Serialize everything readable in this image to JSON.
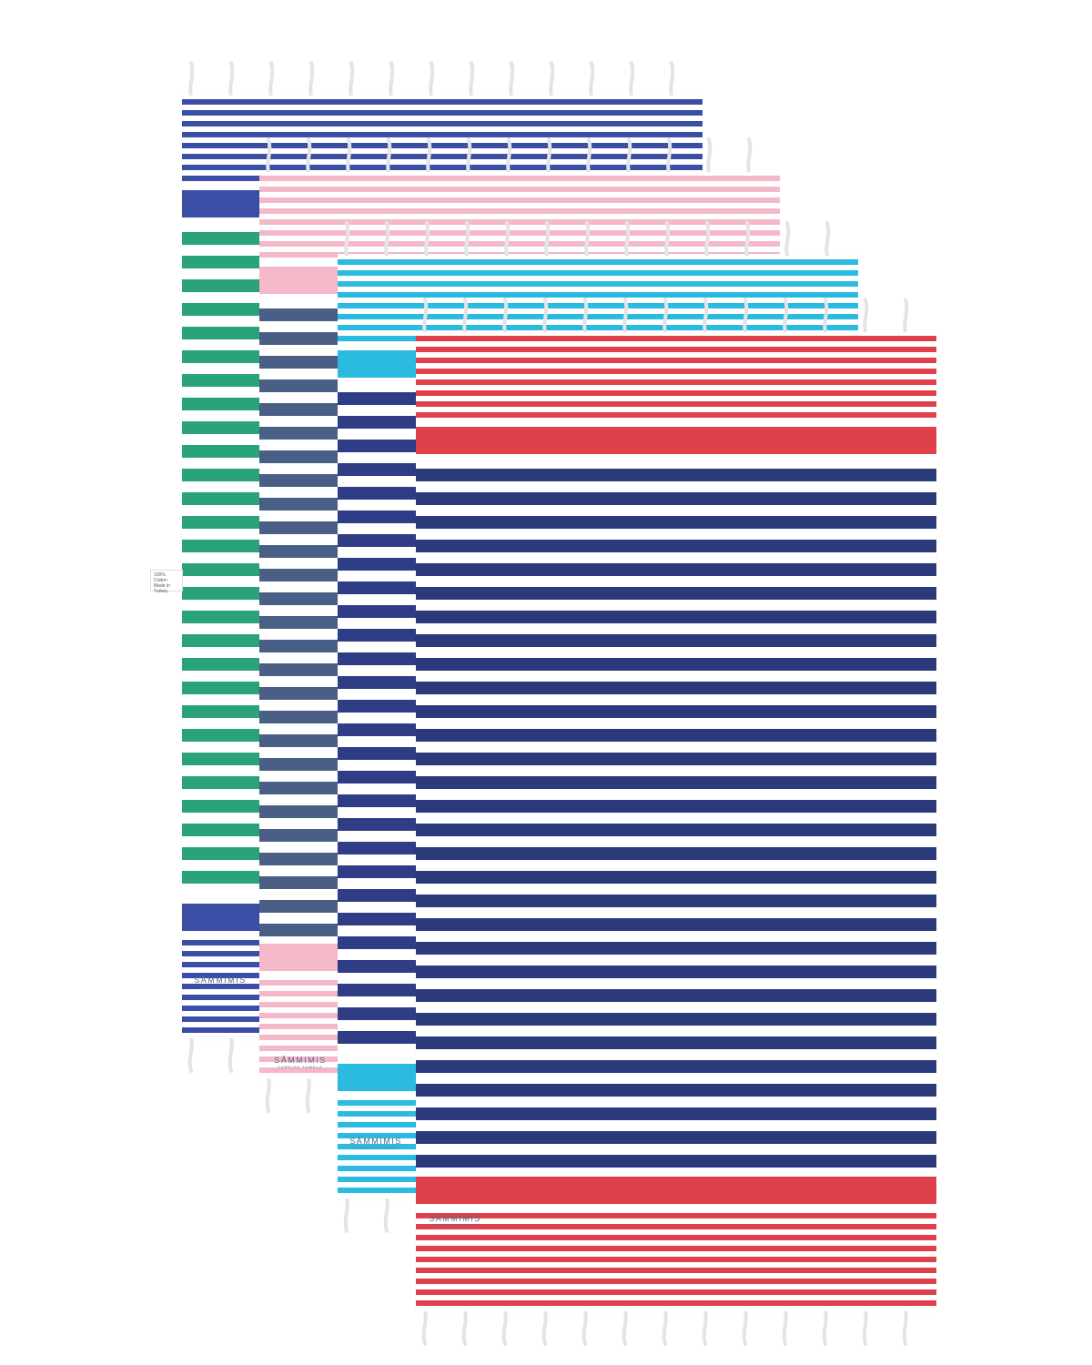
{
  "towels": [
    {
      "name": "towel-navy-green",
      "body": "#2aa37a",
      "end": "#3b4ea6",
      "accent": "#3b4ea6"
    },
    {
      "name": "towel-pink-slate",
      "body": "#4a5f86",
      "end": "#f5b8c8",
      "accent": "#f5b8c8"
    },
    {
      "name": "towel-aqua-navy",
      "body": "#2f3d86",
      "end": "#2bbbe0",
      "accent": "#2bbbe0"
    },
    {
      "name": "towel-red-navy",
      "body": "#2c3a7c",
      "end": "#e0404a",
      "accent": "#e0404a"
    }
  ],
  "labels": {
    "brand": "SÅMMIMIS",
    "brand_sub": "TURKISH TOWELS",
    "care_tag_line1": "100% Cotton",
    "care_tag_line2": "Made in Turkey"
  }
}
